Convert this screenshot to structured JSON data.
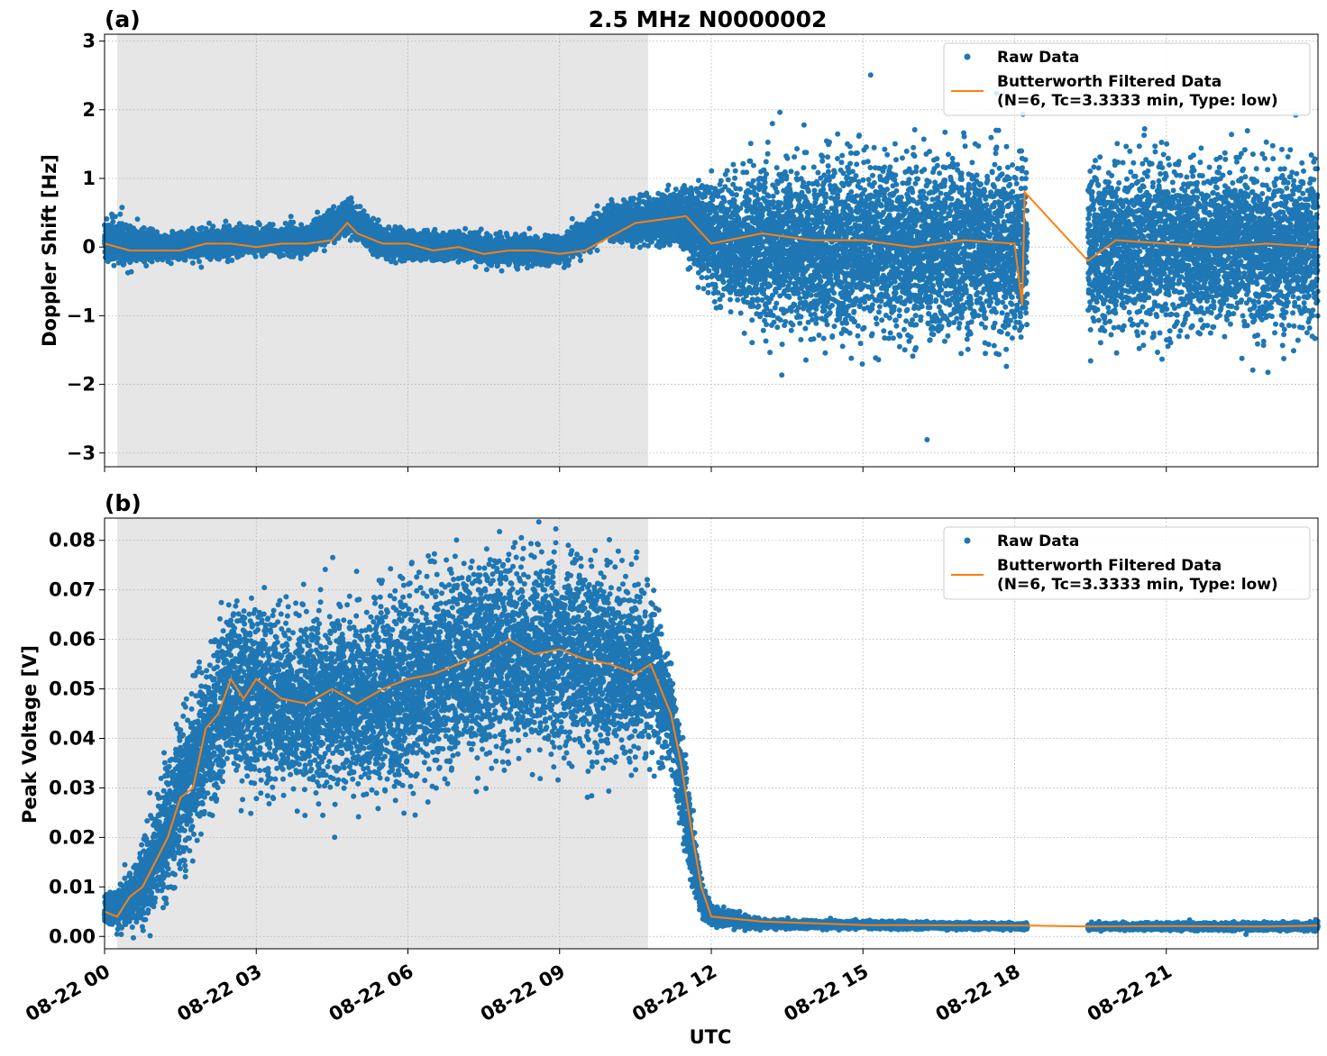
{
  "figure": {
    "title": "2.5 MHz N0000002",
    "xlabel": "UTC"
  },
  "colors": {
    "raw": "#1f77b4",
    "filtered": "#ff7f0e",
    "shade": "#e6e6e6",
    "grid": "#b0b0b0"
  },
  "legend": {
    "raw": "Raw Data",
    "filtered_line1": "Butterworth Filtered Data",
    "filtered_line2": "(N=6, Tc=3.3333 min, Type: low)"
  },
  "chart_data": [
    {
      "type": "scatter",
      "panel": "(a)",
      "title": "2.5 MHz N0000002",
      "xlabel": "",
      "ylabel": "Doppler Shift [Hz]",
      "x_unit": "hours UTC on 08-22",
      "xlim": [
        0,
        24
      ],
      "ylim": [
        -3.2,
        3.1
      ],
      "yticks": [
        3,
        2,
        1,
        0,
        -1,
        -2,
        -3
      ],
      "ytick_labels": [
        "3",
        "2",
        "1",
        "0",
        "−1",
        "−2",
        "−3"
      ],
      "xticks": [
        0,
        3,
        6,
        9,
        12,
        15,
        18,
        21
      ],
      "xtick_labels": [
        "08-22 00",
        "08-22 03",
        "08-22 06",
        "08-22 09",
        "08-22 12",
        "08-22 15",
        "08-22 18",
        "08-22 21"
      ],
      "shaded_x": [
        0.25,
        10.75
      ],
      "grid": true,
      "legend_position": "top-right",
      "series": [
        {
          "name": "Raw Data",
          "style": "points",
          "bands": [
            {
              "x": 0,
              "center": 0.1,
              "spread": 0.35
            },
            {
              "x": 1,
              "center": 0.0,
              "spread": 0.2
            },
            {
              "x": 2,
              "center": 0.05,
              "spread": 0.2
            },
            {
              "x": 3,
              "center": 0.1,
              "spread": 0.2
            },
            {
              "x": 4,
              "center": 0.1,
              "spread": 0.2
            },
            {
              "x": 4.8,
              "center": 0.45,
              "spread": 0.25
            },
            {
              "x": 5.5,
              "center": 0.05,
              "spread": 0.2
            },
            {
              "x": 7,
              "center": 0.0,
              "spread": 0.2
            },
            {
              "x": 8,
              "center": -0.05,
              "spread": 0.2
            },
            {
              "x": 9,
              "center": -0.05,
              "spread": 0.2
            },
            {
              "x": 10,
              "center": 0.35,
              "spread": 0.25
            },
            {
              "x": 11,
              "center": 0.4,
              "spread": 0.35
            },
            {
              "x": 11.5,
              "center": 0.4,
              "spread": 0.5
            },
            {
              "x": 12,
              "center": 0.1,
              "spread": 0.8
            },
            {
              "x": 13,
              "center": 0.0,
              "spread": 1.2
            },
            {
              "x": 15,
              "center": 0.0,
              "spread": 1.3
            },
            {
              "x": 18.2,
              "center": 0.0,
              "spread": 1.3
            },
            {
              "gap": [
                18.25,
                19.45
              ]
            },
            {
              "x": 19.5,
              "center": 0.0,
              "spread": 1.2
            },
            {
              "x": 24,
              "center": 0.0,
              "spread": 1.2
            }
          ]
        },
        {
          "name": "Butterworth Filtered Data (N=6, Tc=3.3333 min, Type: low)",
          "style": "line",
          "x": [
            0,
            0.5,
            1,
            1.5,
            2,
            2.5,
            3,
            3.5,
            4,
            4.5,
            4.8,
            5.0,
            5.5,
            6,
            6.5,
            7,
            7.5,
            8,
            8.5,
            9,
            9.5,
            10,
            10.5,
            11,
            11.5,
            12,
            13,
            14,
            15,
            16,
            17,
            18,
            18.15,
            18.2,
            19.45,
            20,
            21,
            22,
            23,
            24
          ],
          "y": [
            0.05,
            -0.05,
            -0.05,
            -0.05,
            0.05,
            0.05,
            0.0,
            0.05,
            0.05,
            0.1,
            0.35,
            0.2,
            0.05,
            0.05,
            -0.05,
            0.0,
            -0.1,
            -0.05,
            -0.05,
            -0.1,
            -0.05,
            0.15,
            0.35,
            0.4,
            0.45,
            0.05,
            0.2,
            0.1,
            0.1,
            0.0,
            0.1,
            0.05,
            -0.85,
            0.8,
            -0.2,
            0.1,
            0.05,
            0.0,
            0.05,
            0.0
          ]
        }
      ]
    },
    {
      "type": "scatter",
      "panel": "(b)",
      "xlabel": "UTC",
      "ylabel": "Peak Voltage [V]",
      "x_unit": "hours UTC on 08-22",
      "xlim": [
        0,
        24
      ],
      "ylim": [
        -0.0025,
        0.0845
      ],
      "yticks": [
        0.08,
        0.07,
        0.06,
        0.05,
        0.04,
        0.03,
        0.02,
        0.01,
        0.0
      ],
      "ytick_labels": [
        "0.08",
        "0.07",
        "0.06",
        "0.05",
        "0.04",
        "0.03",
        "0.02",
        "0.01",
        "0.00"
      ],
      "xticks": [
        0,
        3,
        6,
        9,
        12,
        15,
        18,
        21
      ],
      "xtick_labels": [
        "08-22 00",
        "08-22 03",
        "08-22 06",
        "08-22 09",
        "08-22 12",
        "08-22 15",
        "08-22 18",
        "08-22 21"
      ],
      "shaded_x": [
        0.25,
        10.75
      ],
      "grid": true,
      "legend_position": "top-right",
      "series": [
        {
          "name": "Raw Data",
          "style": "points",
          "bands": [
            {
              "x": 0,
              "center": 0.005,
              "spread": 0.003
            },
            {
              "x": 0.5,
              "center": 0.007,
              "spread": 0.005
            },
            {
              "x": 1,
              "center": 0.015,
              "spread": 0.012
            },
            {
              "x": 1.5,
              "center": 0.028,
              "spread": 0.015
            },
            {
              "x": 2,
              "center": 0.04,
              "spread": 0.015
            },
            {
              "x": 2.5,
              "center": 0.05,
              "spread": 0.018
            },
            {
              "x": 3,
              "center": 0.048,
              "spread": 0.018
            },
            {
              "x": 4,
              "center": 0.047,
              "spread": 0.018
            },
            {
              "x": 5,
              "center": 0.048,
              "spread": 0.018
            },
            {
              "x": 6,
              "center": 0.05,
              "spread": 0.02
            },
            {
              "x": 7,
              "center": 0.055,
              "spread": 0.02
            },
            {
              "x": 8,
              "center": 0.057,
              "spread": 0.02
            },
            {
              "x": 9,
              "center": 0.057,
              "spread": 0.02
            },
            {
              "x": 10,
              "center": 0.055,
              "spread": 0.02
            },
            {
              "x": 10.8,
              "center": 0.053,
              "spread": 0.015
            },
            {
              "x": 11.2,
              "center": 0.045,
              "spread": 0.01
            },
            {
              "x": 11.5,
              "center": 0.025,
              "spread": 0.01
            },
            {
              "x": 11.8,
              "center": 0.008,
              "spread": 0.004
            },
            {
              "x": 12,
              "center": 0.004,
              "spread": 0.002
            },
            {
              "x": 13,
              "center": 0.0025,
              "spread": 0.0008
            },
            {
              "x": 18.2,
              "center": 0.002,
              "spread": 0.0006
            },
            {
              "gap": [
                18.25,
                19.45
              ]
            },
            {
              "x": 19.5,
              "center": 0.002,
              "spread": 0.0006
            },
            {
              "x": 24,
              "center": 0.002,
              "spread": 0.0008
            }
          ]
        },
        {
          "name": "Butterworth Filtered Data (N=6, Tc=3.3333 min, Type: low)",
          "style": "line",
          "x": [
            0,
            0.25,
            0.5,
            0.75,
            1,
            1.25,
            1.5,
            1.75,
            2,
            2.25,
            2.5,
            2.75,
            3,
            3.5,
            4,
            4.5,
            5,
            5.5,
            6,
            6.5,
            7,
            7.5,
            8,
            8.5,
            9,
            9.5,
            10,
            10.5,
            10.8,
            11,
            11.2,
            11.4,
            11.6,
            11.8,
            12,
            12.5,
            13,
            15,
            18.2,
            19.45,
            21,
            23,
            24
          ],
          "y": [
            0.005,
            0.004,
            0.008,
            0.01,
            0.015,
            0.02,
            0.028,
            0.03,
            0.042,
            0.045,
            0.052,
            0.048,
            0.052,
            0.048,
            0.047,
            0.05,
            0.047,
            0.05,
            0.052,
            0.053,
            0.055,
            0.057,
            0.06,
            0.057,
            0.058,
            0.056,
            0.055,
            0.053,
            0.055,
            0.05,
            0.045,
            0.035,
            0.022,
            0.01,
            0.004,
            0.0035,
            0.003,
            0.0023,
            0.0022,
            0.002,
            0.0021,
            0.002,
            0.0022
          ]
        }
      ]
    }
  ]
}
